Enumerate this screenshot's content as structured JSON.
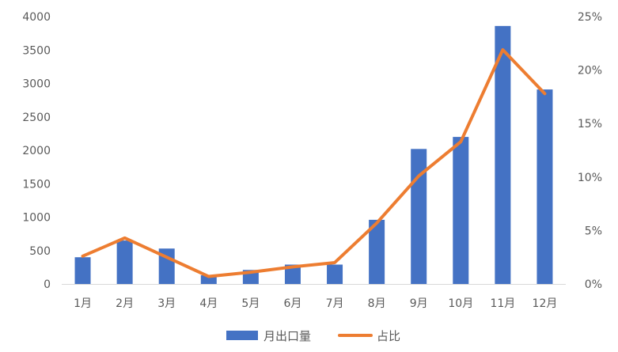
{
  "chart_data": {
    "type": "bar",
    "categories": [
      "1月",
      "2月",
      "3月",
      "4月",
      "5月",
      "6月",
      "7月",
      "8月",
      "9月",
      "10月",
      "11月",
      "12月"
    ],
    "series": [
      {
        "name": "月出口量",
        "type": "bar",
        "axis": "left",
        "color": "#4472C4",
        "values": [
          400,
          650,
          530,
          130,
          210,
          290,
          290,
          960,
          2020,
          2200,
          3860,
          2910
        ]
      },
      {
        "name": "占比",
        "type": "line",
        "axis": "right",
        "color": "#ED7D31",
        "values": [
          2.6,
          4.3,
          2.5,
          0.7,
          1.1,
          1.6,
          2.0,
          5.7,
          10.1,
          13.3,
          21.9,
          17.8
        ]
      }
    ],
    "y_left": {
      "min": 0,
      "max": 4000,
      "ticks": [
        0,
        500,
        1000,
        1500,
        2000,
        2500,
        3000,
        3500,
        4000
      ]
    },
    "y_right": {
      "min": 0,
      "max": 25,
      "ticks": [
        "0%",
        "5%",
        "10%",
        "15%",
        "20%",
        "25%"
      ]
    },
    "legend_position": "bottom",
    "grid": false
  }
}
